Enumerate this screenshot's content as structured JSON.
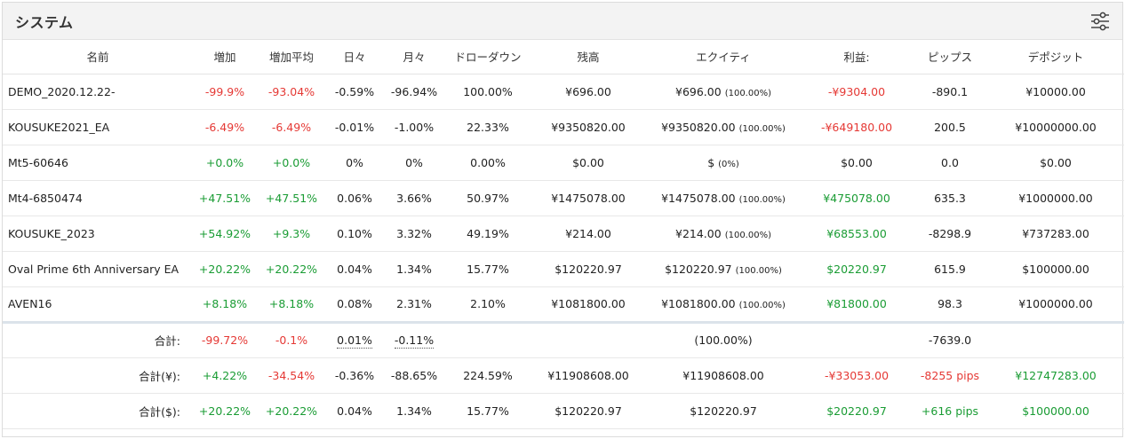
{
  "title": "システム",
  "headers": [
    "名前",
    "増加",
    "増加平均",
    "日々",
    "月々",
    "ドローダウン",
    "残高",
    "エクイティ",
    "利益:",
    "ピップス",
    "デポジット"
  ],
  "rows": [
    {
      "name": "DEMO_2020.12.22-",
      "gain": "-99.9%",
      "gain_avg": "-93.04%",
      "daily": "-0.59%",
      "monthly": "-96.94%",
      "drawdown": "100.00%",
      "balance": "¥696.00",
      "equity": "¥696.00",
      "equity_pct": "(100.00%)",
      "profit": "-¥9304.00",
      "pips": "-890.1",
      "deposit": "¥10000.00"
    },
    {
      "name": "KOUSUKE2021_EA",
      "gain": "-6.49%",
      "gain_avg": "-6.49%",
      "daily": "-0.01%",
      "monthly": "-1.00%",
      "drawdown": "22.33%",
      "balance": "¥9350820.00",
      "equity": "¥9350820.00",
      "equity_pct": "(100.00%)",
      "profit": "-¥649180.00",
      "pips": "200.5",
      "deposit": "¥10000000.00"
    },
    {
      "name": "Mt5-60646",
      "gain": "+0.0%",
      "gain_avg": "+0.0%",
      "daily": "0%",
      "monthly": "0%",
      "drawdown": "0.00%",
      "balance": "$0.00",
      "equity": "$",
      "equity_pct": "(0%)",
      "profit": "$0.00",
      "pips": "0.0",
      "deposit": "$0.00"
    },
    {
      "name": "Mt4-6850474",
      "gain": "+47.51%",
      "gain_avg": "+47.51%",
      "daily": "0.06%",
      "monthly": "3.66%",
      "drawdown": "50.97%",
      "balance": "¥1475078.00",
      "equity": "¥1475078.00",
      "equity_pct": "(100.00%)",
      "profit": "¥475078.00",
      "pips": "635.3",
      "deposit": "¥1000000.00"
    },
    {
      "name": "KOUSUKE_2023",
      "gain": "+54.92%",
      "gain_avg": "+9.3%",
      "daily": "0.10%",
      "monthly": "3.32%",
      "drawdown": "49.19%",
      "balance": "¥214.00",
      "equity": "¥214.00",
      "equity_pct": "(100.00%)",
      "profit": "¥68553.00",
      "pips": "-8298.9",
      "deposit": "¥737283.00"
    },
    {
      "name": "Oval Prime 6th Anniversary EA",
      "gain": "+20.22%",
      "gain_avg": "+20.22%",
      "daily": "0.04%",
      "monthly": "1.34%",
      "drawdown": "15.77%",
      "balance": "$120220.97",
      "equity": "$120220.97",
      "equity_pct": "(100.00%)",
      "profit": "$20220.97",
      "pips": "615.9",
      "deposit": "$100000.00"
    },
    {
      "name": "AVEN16",
      "gain": "+8.18%",
      "gain_avg": "+8.18%",
      "daily": "0.08%",
      "monthly": "2.31%",
      "drawdown": "2.10%",
      "balance": "¥1081800.00",
      "equity": "¥1081800.00",
      "equity_pct": "(100.00%)",
      "profit": "¥81800.00",
      "pips": "98.3",
      "deposit": "¥1000000.00"
    }
  ],
  "totals": {
    "label": "合計:",
    "gain": "-99.72%",
    "gain_avg": "-0.1%",
    "daily": "0.01%",
    "monthly": "-0.11%",
    "equity": "(100.00%)",
    "pips": "-7639.0"
  },
  "totals_yen": {
    "label": "合計(¥):",
    "gain": "+4.22%",
    "gain_avg": "-34.54%",
    "daily": "-0.36%",
    "monthly": "-88.65%",
    "drawdown": "224.59%",
    "balance": "¥11908608.00",
    "equity": "¥11908608.00",
    "profit": "-¥33053.00",
    "pips": "-8255 pips",
    "deposit": "¥12747283.00"
  },
  "totals_usd": {
    "label": "合計($):",
    "gain": "+20.22%",
    "gain_avg": "+20.22%",
    "daily": "0.04%",
    "monthly": "1.34%",
    "drawdown": "15.77%",
    "balance": "$120220.97",
    "equity": "$120220.97",
    "profit": "$20220.97",
    "pips": "+616 pips",
    "deposit": "$100000.00"
  },
  "colors": {
    "negative": "#e53935",
    "positive": "#1a9c34"
  },
  "icons": {
    "settings": "sliders-icon"
  }
}
